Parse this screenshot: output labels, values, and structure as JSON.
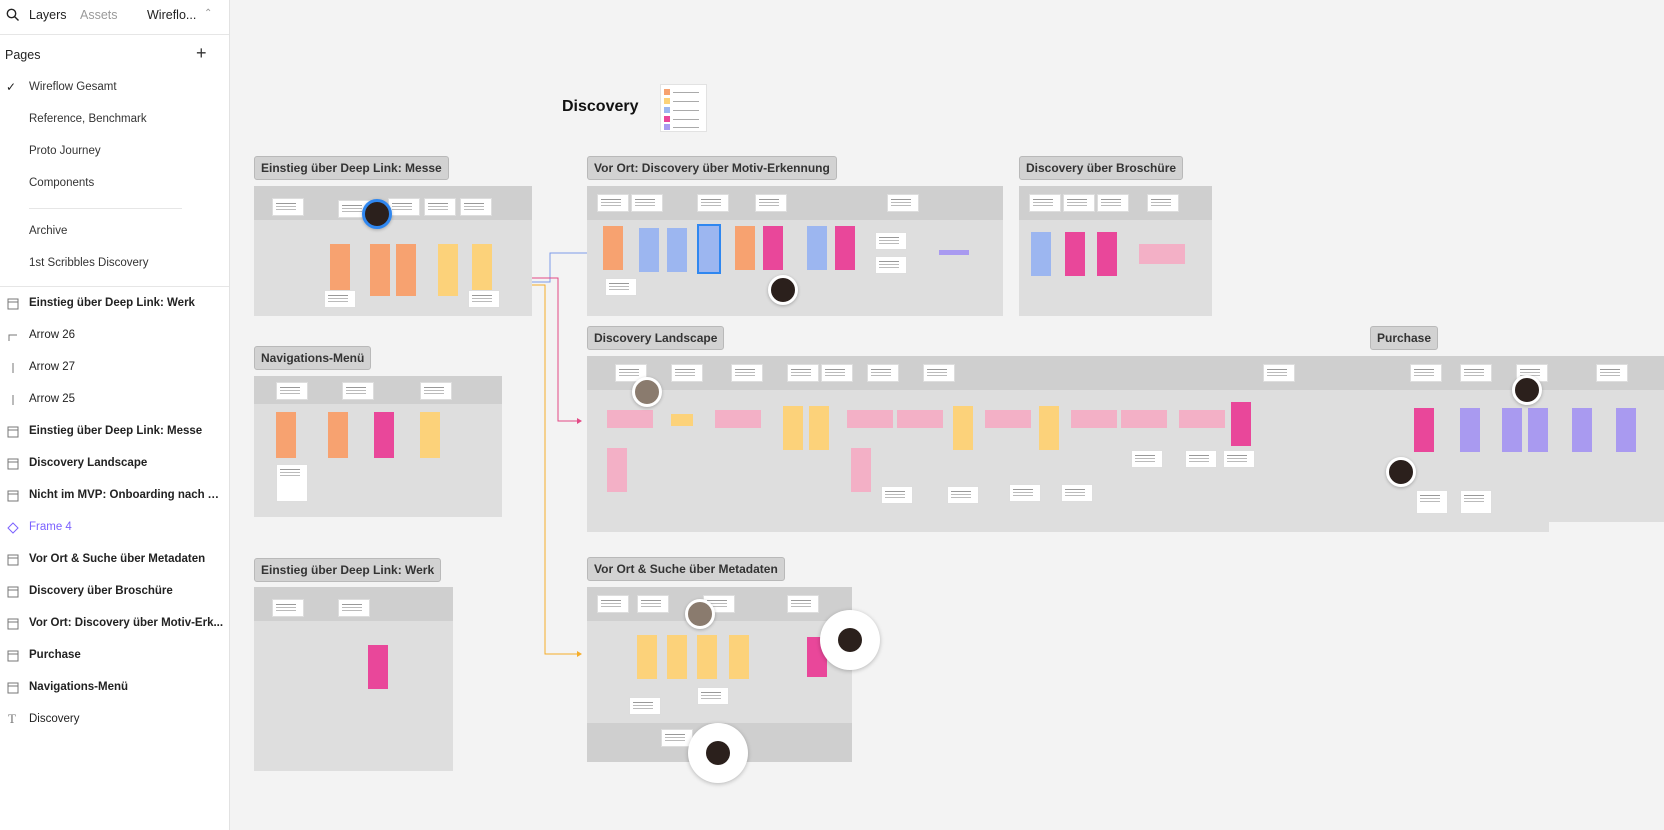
{
  "sidebar": {
    "tabs": {
      "layers": "Layers",
      "assets": "Assets",
      "file": "Wireflo..."
    },
    "pages_heading": "Pages",
    "pages": [
      {
        "label": "Wireflow Gesamt",
        "active": true
      },
      {
        "label": "Reference, Benchmark"
      },
      {
        "label": "Proto Journey"
      },
      {
        "label": "Components"
      },
      {
        "label": "Archive"
      },
      {
        "label": "1st Scribbles Discovery"
      }
    ],
    "layers": [
      {
        "label": "Einstieg über Deep Link: Werk",
        "icon": "frame-icon"
      },
      {
        "label": "Arrow 26",
        "icon": "arrow-icon"
      },
      {
        "label": "Arrow 27",
        "icon": "line-icon"
      },
      {
        "label": "Arrow 25",
        "icon": "line-icon"
      },
      {
        "label": "Einstieg über Deep Link: Messe",
        "icon": "frame-icon"
      },
      {
        "label": "Discovery Landscape",
        "icon": "frame-icon"
      },
      {
        "label": "Nicht im MVP: Onboarding nach A...",
        "icon": "frame-icon"
      },
      {
        "label": "Frame 4",
        "icon": "component-icon",
        "color": "#7b61ff"
      },
      {
        "label": "Vor Ort & Suche über Metadaten",
        "icon": "frame-icon"
      },
      {
        "label": "Discovery über Broschüre",
        "icon": "frame-icon"
      },
      {
        "label": "Vor Ort: Discovery über Motiv-Erk...",
        "icon": "frame-icon"
      },
      {
        "label": "Purchase",
        "icon": "frame-icon"
      },
      {
        "label": "Navigations-Menü",
        "icon": "frame-icon"
      },
      {
        "label": "Discovery",
        "icon": "text-icon"
      }
    ]
  },
  "canvas": {
    "title": "Discovery",
    "frames": {
      "messe": "Einstieg über Deep Link: Messe",
      "motiv": "Vor Ort: Discovery über Motiv-Erkennung",
      "broschuere": "Discovery über Broschüre",
      "landscape": "Discovery Landscape",
      "navigation": "Navigations-Menü",
      "purchase": "Purchase",
      "werk": "Einstieg über Deep Link: Werk",
      "metadaten": "Vor Ort & Suche über Metadaten"
    },
    "colors": {
      "orange": "#f7a270",
      "yellow": "#fcd27a",
      "blue": "#9cb6f0",
      "pink": "#e9479a",
      "purple": "#a99af0"
    }
  }
}
